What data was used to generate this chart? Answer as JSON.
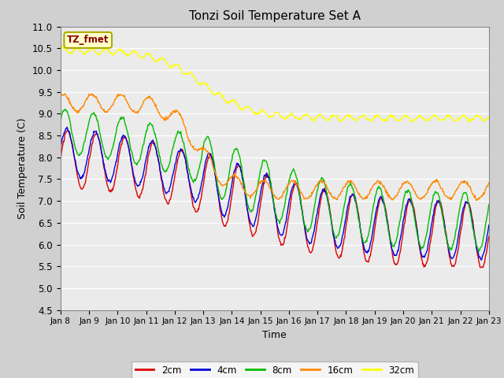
{
  "title": "Tonzi Soil Temperature Set A",
  "xlabel": "Time",
  "ylabel": "Soil Temperature (C)",
  "ylim": [
    4.5,
    11.0
  ],
  "background_color": "#ebebeb",
  "legend_label": "TZ_fmet",
  "legend_bg": "#ffffcc",
  "legend_border": "#aaaa00",
  "series_labels": [
    "2cm",
    "4cm",
    "8cm",
    "16cm",
    "32cm"
  ],
  "series_colors": [
    "#dd0000",
    "#0000dd",
    "#00bb00",
    "#ff8800",
    "#ffff00"
  ],
  "tick_labels": [
    "Jan 8",
    "Jan 9",
    "Jan 10",
    "Jan 11",
    "Jan 12",
    "Jan 13",
    "Jan 14",
    "Jan 15",
    "Jan 16",
    "Jan 17",
    "Jan 18",
    "Jan 19",
    "Jan 20",
    "Jan 21",
    "Jan 22",
    "Jan 23"
  ],
  "n_points": 720,
  "yticks": [
    4.5,
    5.0,
    5.5,
    6.0,
    6.5,
    7.0,
    7.5,
    8.0,
    8.5,
    9.0,
    9.5,
    10.0,
    10.5,
    11.0
  ]
}
